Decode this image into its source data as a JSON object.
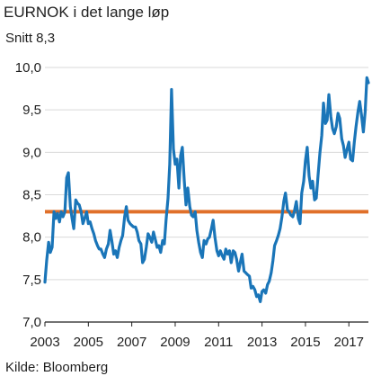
{
  "title": "EURNOK i det lange løp",
  "subtitle": "Snitt 8,3",
  "source": "Kilde: Bloomberg",
  "colors": {
    "series": "#1a75b8",
    "average": "#e0702a",
    "grid": "#d9d9d9",
    "axis": "#1f1f1f",
    "text": "#1f1f1f"
  },
  "chart_data": {
    "type": "line",
    "title": "EURNOK i det lange løp",
    "subtitle": "Snitt 8,3",
    "xlabel": "",
    "ylabel": "",
    "xlim": [
      2003.0,
      2017.9
    ],
    "ylim": [
      7.0,
      10.0
    ],
    "grid": "horizontal",
    "x_ticks": [
      2003,
      2005,
      2007,
      2009,
      2011,
      2013,
      2015,
      2017
    ],
    "y_ticks": [
      7.0,
      7.5,
      8.0,
      8.5,
      9.0,
      9.5,
      10.0
    ],
    "y_tick_labels": [
      "7,0",
      "7,5",
      "8,0",
      "8,5",
      "9,0",
      "9,5",
      "10,0"
    ],
    "reference_lines": [
      {
        "value": 8.3
      }
    ],
    "series": [
      {
        "x": [
          2003.0,
          2003.08,
          2003.17,
          2003.25,
          2003.33,
          2003.42,
          2003.5,
          2003.58,
          2003.67,
          2003.75,
          2003.83,
          2003.92,
          2004.0,
          2004.08,
          2004.17,
          2004.25,
          2004.33,
          2004.42,
          2004.5,
          2004.58,
          2004.67,
          2004.75,
          2004.83,
          2004.92,
          2005.0,
          2005.08,
          2005.17,
          2005.25,
          2005.33,
          2005.42,
          2005.5,
          2005.58,
          2005.67,
          2005.75,
          2005.83,
          2005.92,
          2006.0,
          2006.08,
          2006.17,
          2006.25,
          2006.33,
          2006.42,
          2006.5,
          2006.58,
          2006.67,
          2006.75,
          2006.83,
          2006.92,
          2007.0,
          2007.08,
          2007.17,
          2007.25,
          2007.33,
          2007.42,
          2007.5,
          2007.58,
          2007.67,
          2007.75,
          2007.83,
          2007.92,
          2008.0,
          2008.08,
          2008.17,
          2008.25,
          2008.33,
          2008.42,
          2008.5,
          2008.58,
          2008.67,
          2008.75,
          2008.83,
          2008.92,
          2009.0,
          2009.08,
          2009.17,
          2009.25,
          2009.33,
          2009.42,
          2009.5,
          2009.58,
          2009.67,
          2009.75,
          2009.83,
          2009.92,
          2010.0,
          2010.08,
          2010.17,
          2010.25,
          2010.33,
          2010.42,
          2010.5,
          2010.58,
          2010.67,
          2010.75,
          2010.83,
          2010.92,
          2011.0,
          2011.08,
          2011.17,
          2011.25,
          2011.33,
          2011.42,
          2011.5,
          2011.58,
          2011.67,
          2011.75,
          2011.83,
          2011.92,
          2012.0,
          2012.08,
          2012.17,
          2012.25,
          2012.33,
          2012.42,
          2012.5,
          2012.58,
          2012.67,
          2012.75,
          2012.83,
          2012.92,
          2013.0,
          2013.08,
          2013.17,
          2013.25,
          2013.33,
          2013.42,
          2013.5,
          2013.58,
          2013.67,
          2013.75,
          2013.83,
          2013.92,
          2014.0,
          2014.08,
          2014.17,
          2014.25,
          2014.33,
          2014.42,
          2014.5,
          2014.58,
          2014.67,
          2014.75,
          2014.83,
          2014.92,
          2015.0,
          2015.08,
          2015.17,
          2015.25,
          2015.33,
          2015.42,
          2015.5,
          2015.58,
          2015.67,
          2015.75,
          2015.83,
          2015.92,
          2016.0,
          2016.08,
          2016.17,
          2016.25,
          2016.33,
          2016.42,
          2016.5,
          2016.58,
          2016.67,
          2016.75,
          2016.83,
          2016.92,
          2017.0,
          2017.08,
          2017.17,
          2017.25,
          2017.33,
          2017.42,
          2017.5,
          2017.58,
          2017.67,
          2017.75,
          2017.83,
          2017.9
        ],
        "y": [
          7.47,
          7.72,
          7.94,
          7.82,
          7.88,
          8.3,
          8.22,
          8.28,
          8.18,
          8.3,
          8.24,
          8.3,
          8.7,
          8.76,
          8.36,
          8.22,
          8.1,
          8.44,
          8.4,
          8.38,
          8.3,
          8.16,
          8.22,
          8.3,
          8.16,
          8.18,
          8.1,
          8.04,
          7.96,
          7.9,
          7.86,
          7.86,
          7.8,
          7.76,
          7.86,
          7.92,
          8.08,
          7.96,
          7.8,
          7.84,
          7.76,
          7.88,
          7.96,
          8.02,
          8.24,
          8.36,
          8.2,
          8.16,
          8.14,
          8.12,
          8.12,
          8.06,
          7.96,
          7.92,
          7.7,
          7.74,
          7.88,
          8.04,
          8.0,
          7.94,
          8.06,
          7.98,
          7.88,
          7.9,
          7.82,
          7.96,
          7.92,
          8.2,
          8.46,
          8.86,
          9.74,
          9.04,
          8.86,
          8.92,
          8.58,
          8.96,
          9.06,
          8.66,
          8.38,
          8.58,
          8.36,
          8.26,
          8.24,
          8.3,
          8.08,
          7.94,
          7.82,
          7.76,
          7.96,
          7.92,
          7.98,
          8.0,
          8.1,
          8.2,
          8.0,
          7.84,
          7.78,
          7.84,
          7.78,
          7.74,
          7.86,
          7.8,
          7.84,
          7.7,
          7.84,
          7.82,
          7.74,
          7.6,
          7.7,
          7.8,
          7.6,
          7.58,
          7.56,
          7.54,
          7.4,
          7.42,
          7.38,
          7.3,
          7.32,
          7.24,
          7.36,
          7.38,
          7.34,
          7.44,
          7.48,
          7.58,
          7.72,
          7.9,
          7.96,
          8.02,
          8.1,
          8.24,
          8.42,
          8.52,
          8.32,
          8.3,
          8.26,
          8.24,
          8.32,
          8.42,
          8.22,
          8.16,
          8.52,
          8.66,
          8.9,
          9.06,
          8.72,
          8.58,
          8.66,
          8.44,
          8.46,
          8.72,
          9.0,
          9.2,
          9.58,
          9.34,
          9.38,
          9.68,
          9.42,
          9.28,
          9.22,
          9.3,
          9.46,
          9.4,
          9.16,
          9.08,
          8.94,
          9.04,
          9.12,
          8.92,
          8.9,
          9.12,
          9.3,
          9.48,
          9.6,
          9.44,
          9.24,
          9.48,
          9.88,
          9.82
        ]
      }
    ]
  }
}
